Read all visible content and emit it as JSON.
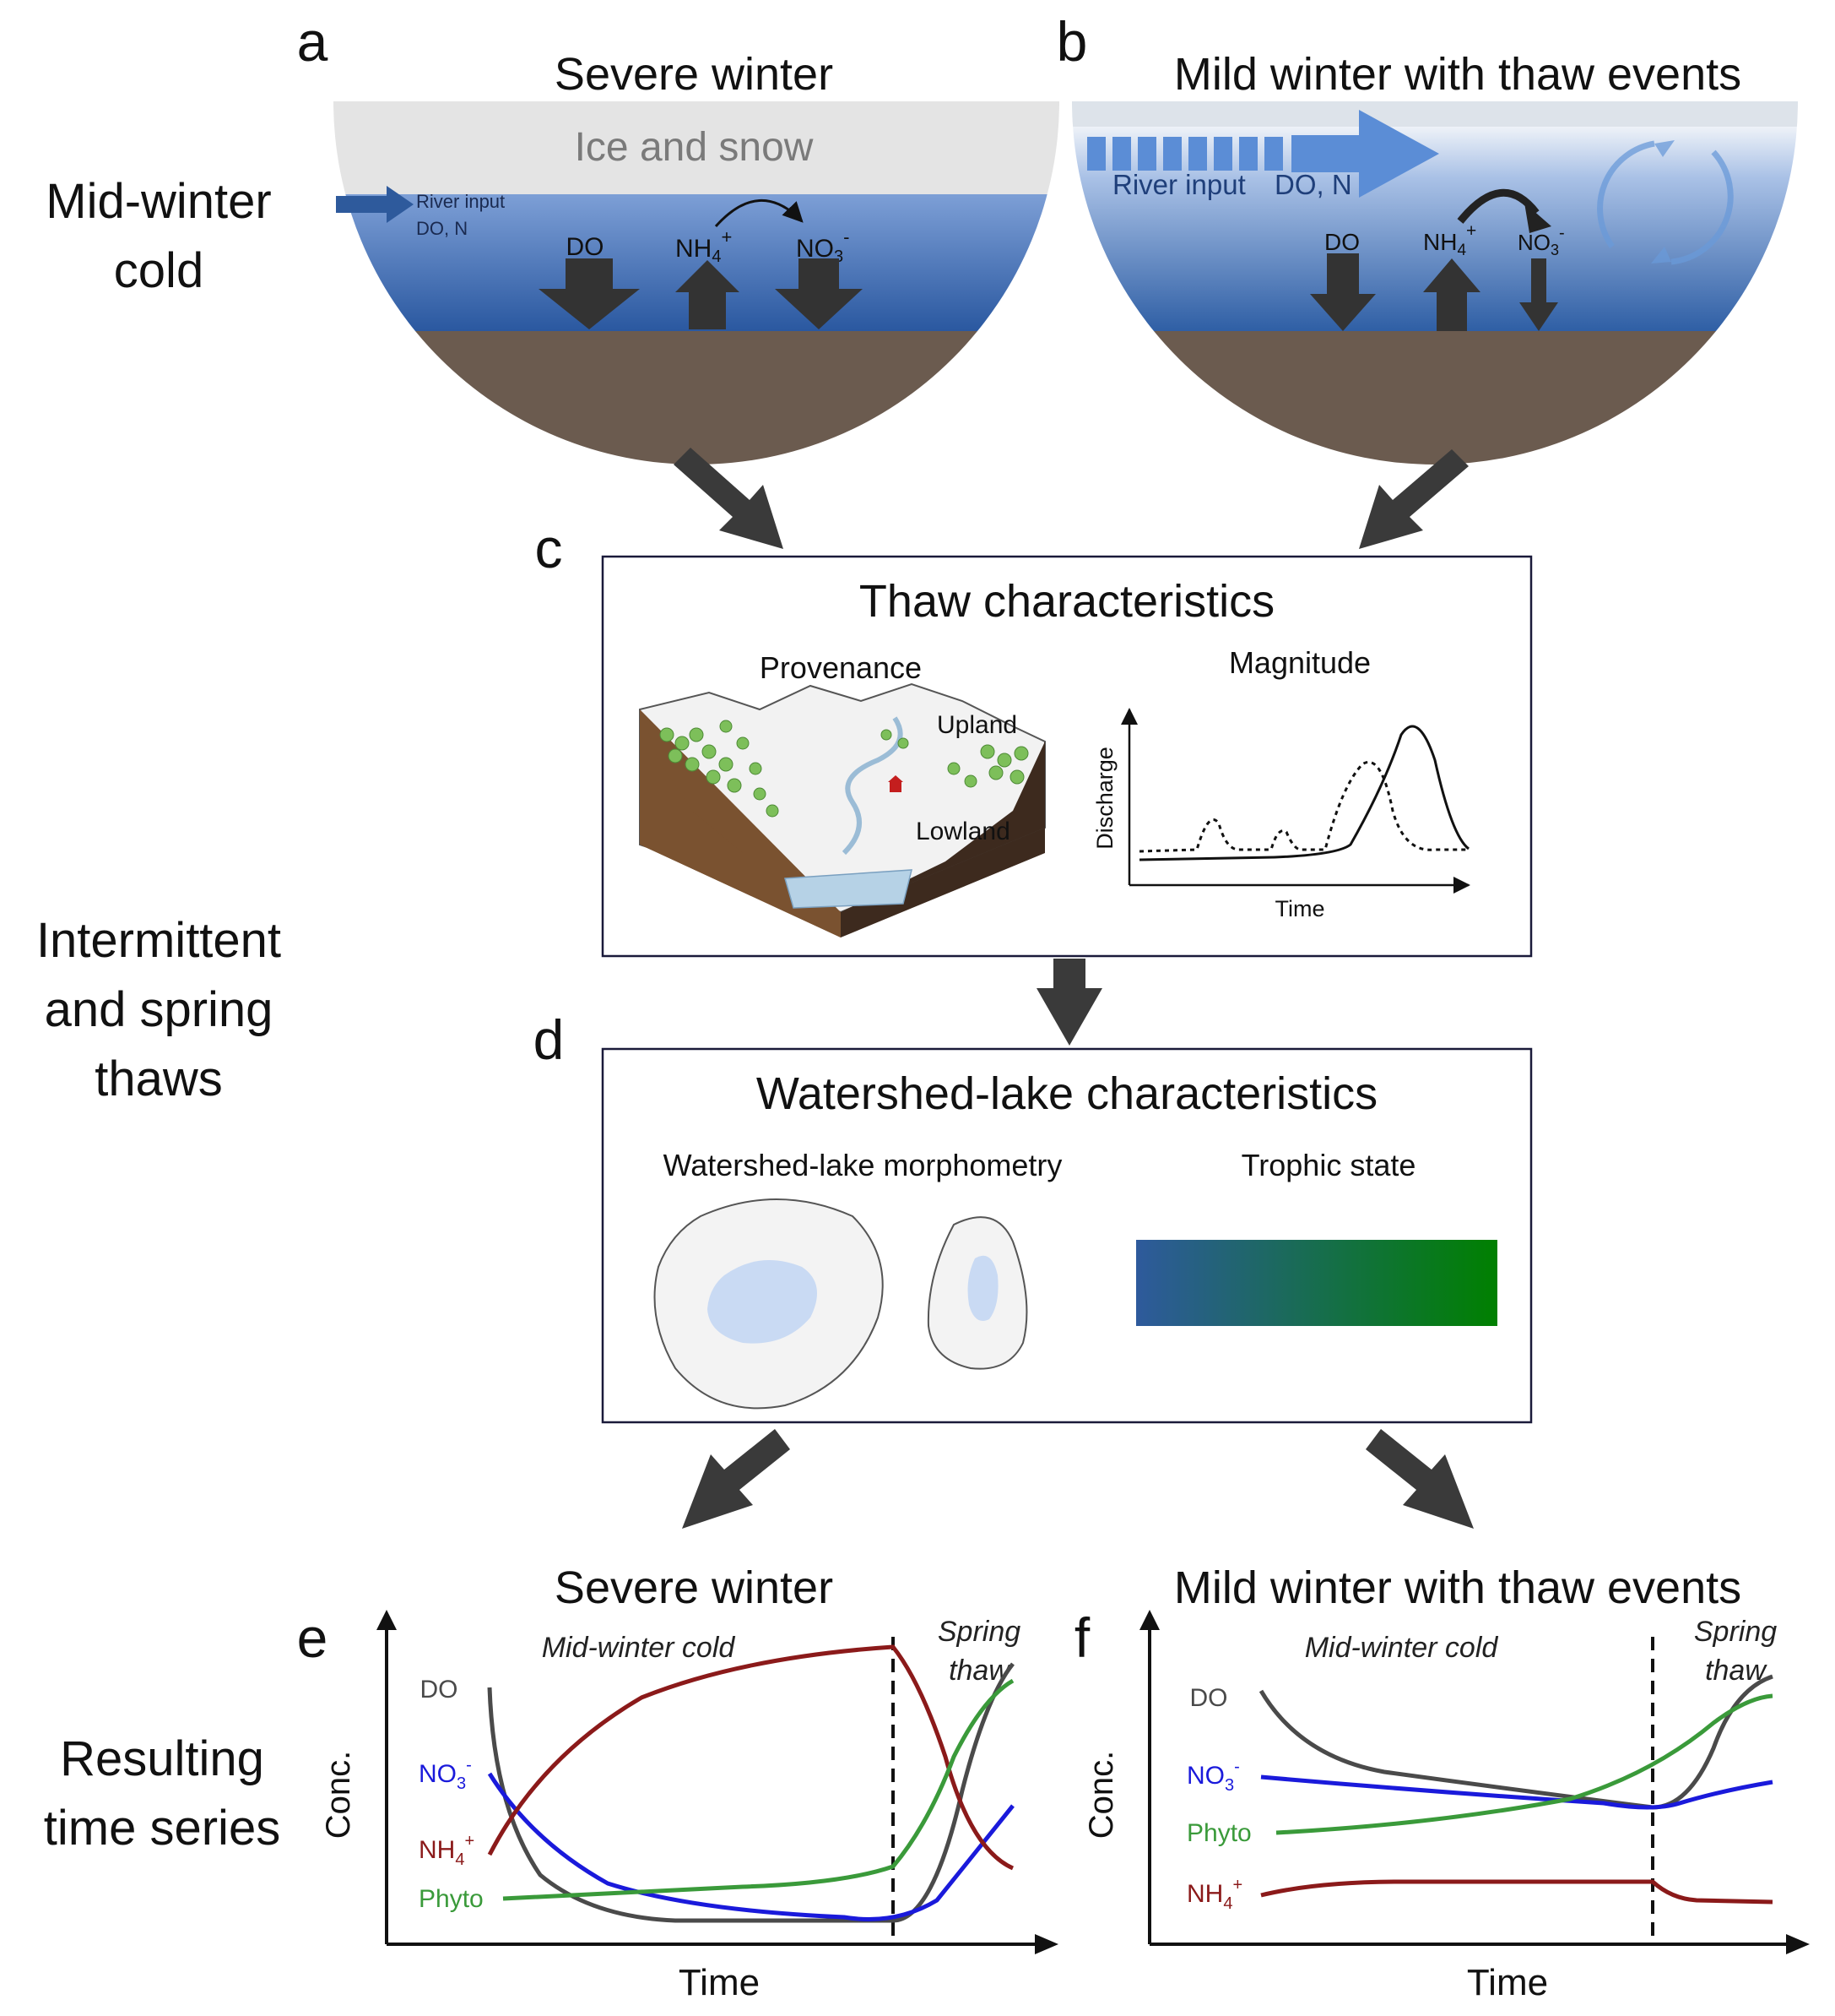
{
  "row_labels": {
    "mid_winter": [
      "Mid-winter",
      "cold"
    ],
    "thaws": [
      "Intermittent",
      "and spring",
      "thaws"
    ],
    "results": [
      "Resulting",
      "time series"
    ]
  },
  "panel_a": {
    "letter": "a",
    "title": "Severe winter",
    "ice_label": "Ice and snow",
    "river_input": [
      "River input",
      "DO, N"
    ],
    "do": "DO",
    "nh4_main": "NH",
    "nh4_sub": "4",
    "nh4_sup": "+",
    "no3_main": "NO",
    "no3_sub": "3",
    "no3_sup": "-"
  },
  "panel_b": {
    "letter": "b",
    "title": "Mild winter with thaw events",
    "river_input": "River input",
    "river_solutes": "DO, N",
    "do": "DO",
    "nh4_main": "NH",
    "nh4_sub": "4",
    "nh4_sup": "+",
    "no3_main": "NO",
    "no3_sub": "3",
    "no3_sup": "-"
  },
  "panel_c": {
    "letter": "c",
    "title": "Thaw characteristics",
    "provenance": "Provenance",
    "magnitude": "Magnitude",
    "upland": "Upland",
    "lowland": "Lowland",
    "y_axis": "Discharge",
    "x_axis": "Time"
  },
  "panel_d": {
    "letter": "d",
    "title": "Watershed-lake characteristics",
    "morphometry": "Watershed-lake morphometry",
    "trophic": "Trophic state",
    "gradient_colors": [
      "#2e5a9c",
      "#008000"
    ]
  },
  "panel_e": {
    "letter": "e",
    "title": "Severe winter",
    "period_1": "Mid-winter cold",
    "period_2": [
      "Spring",
      "thaw"
    ],
    "y_axis": "Conc.",
    "x_axis": "Time",
    "labels": {
      "do": "DO",
      "no3_main": "NO",
      "no3_sub": "3",
      "no3_sup": "-",
      "nh4_main": "NH",
      "nh4_sub": "4",
      "nh4_sup": "+",
      "phyto": "Phyto"
    }
  },
  "panel_f": {
    "letter": "f",
    "title": "Mild winter with thaw events",
    "period_1": "Mid-winter cold",
    "period_2": [
      "Spring",
      "thaw"
    ],
    "y_axis": "Conc.",
    "x_axis": "Time",
    "labels": {
      "do": "DO",
      "no3_main": "NO",
      "no3_sub": "3",
      "no3_sup": "-",
      "phyto": "Phyto",
      "nh4_main": "NH",
      "nh4_sub": "4",
      "nh4_sup": "+"
    }
  },
  "colors": {
    "do": "#4a4a4a",
    "no3": "#1a1adb",
    "nh4": "#8b1a1a",
    "phyto": "#3a9a3a",
    "water_top": "#6f96d0",
    "water_bottom": "#2f5fa5",
    "sediment": "#6b5b4f",
    "ice": "#e4e4e4"
  }
}
